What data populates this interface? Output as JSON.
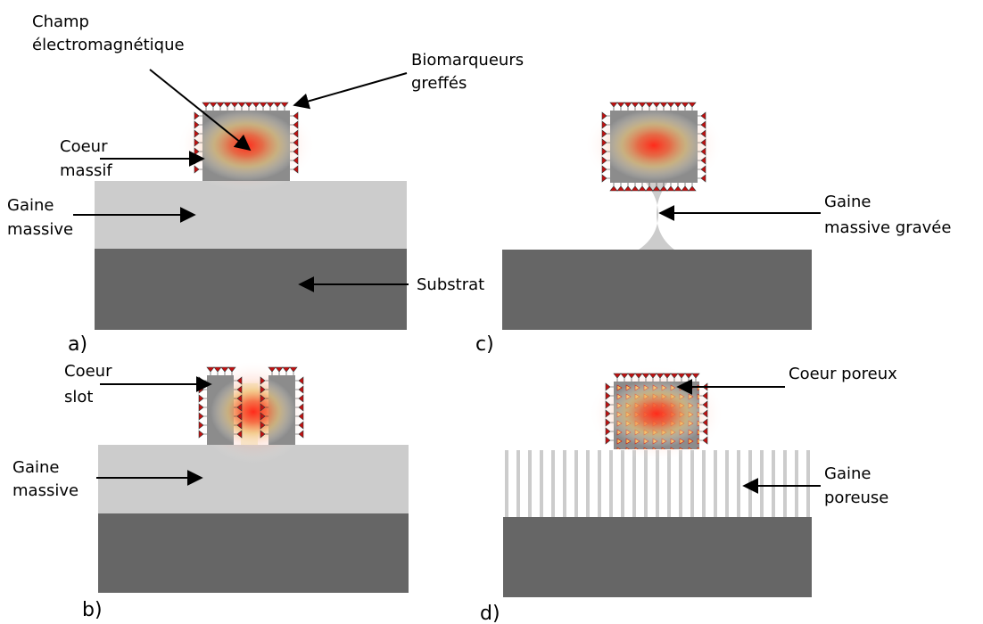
{
  "panels": {
    "a": {
      "label": "a)",
      "champ_line1": "Champ",
      "champ_line2": "électromagnétique",
      "bio_line1": "Biomarqueurs",
      "bio_line2": "greffés",
      "coeur_line1": "Coeur",
      "coeur_line2": "massif",
      "gaine_line1": "Gaine",
      "gaine_line2": "massive",
      "substrat": "Substrat"
    },
    "b": {
      "label": "b)",
      "coeur_line1": "Coeur",
      "coeur_line2": "slot",
      "gaine_line1": "Gaine",
      "gaine_line2": "massive"
    },
    "c": {
      "label": "c)",
      "gaine_line1": "Gaine",
      "gaine_line2": "massive gravée"
    },
    "d": {
      "label": "d)",
      "coeur": "Coeur poreux",
      "gaine_line1": "Gaine",
      "gaine_line2": "poreuse"
    }
  },
  "colors": {
    "substrate": "#666666",
    "cladding": "#cccccc",
    "core": "#8c8c8c",
    "field_center": "#ff2a1a",
    "field_mid": "#f0c878",
    "biomarker": "#c41010"
  }
}
